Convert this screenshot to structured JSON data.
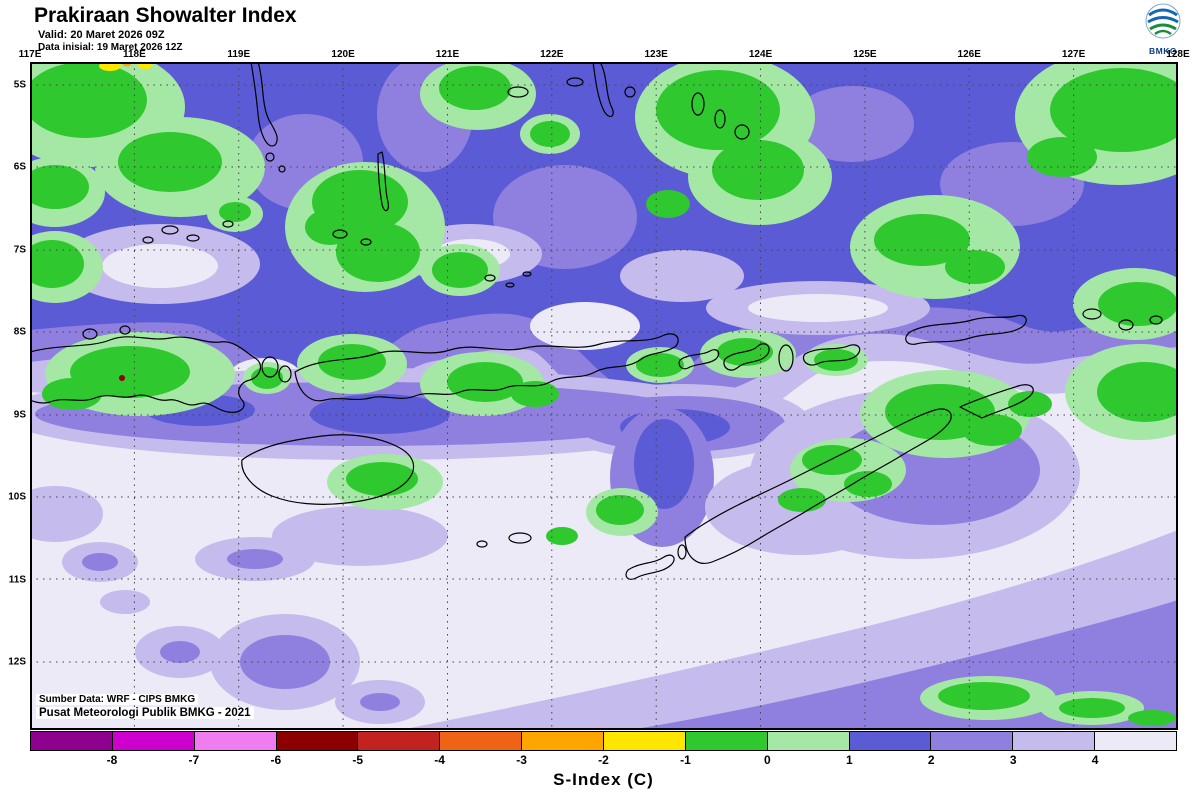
{
  "header": {
    "title": "Prakiraan Showalter Index",
    "valid": "Valid: 20 Maret 2026 09Z",
    "init": "Data inisial: 19 Maret 2026 12Z",
    "logo_text": "BMKG"
  },
  "map": {
    "x_labels": [
      "117E",
      "118E",
      "119E",
      "120E",
      "121E",
      "122E",
      "123E",
      "124E",
      "125E",
      "126E",
      "127E",
      "128E"
    ],
    "y_labels": [
      "5S",
      "6S",
      "7S",
      "8S",
      "9S",
      "10S",
      "11S",
      "12S"
    ],
    "source_line1": "Sumber Data: WRF - CIPS BMKG",
    "source_line2": "Pusat Meteorologi Publik BMKG -  2021"
  },
  "legend": {
    "title": "S-Index (C)",
    "tick_labels": [
      "-8",
      "-7",
      "-6",
      "-5",
      "-4",
      "-3",
      "-2",
      "-1",
      "0",
      "1",
      "2",
      "3",
      "4"
    ],
    "colors": [
      "#8E008E",
      "#CE00CE",
      "#EF7DEF",
      "#8C0000",
      "#C2231E",
      "#EF6414",
      "#FFA500",
      "#FFE600",
      "#2FC82F",
      "#A5E8A5",
      "#5B5BD6",
      "#8F80DF",
      "#C5BBEC",
      "#EDEAF8"
    ],
    "units": "C"
  }
}
